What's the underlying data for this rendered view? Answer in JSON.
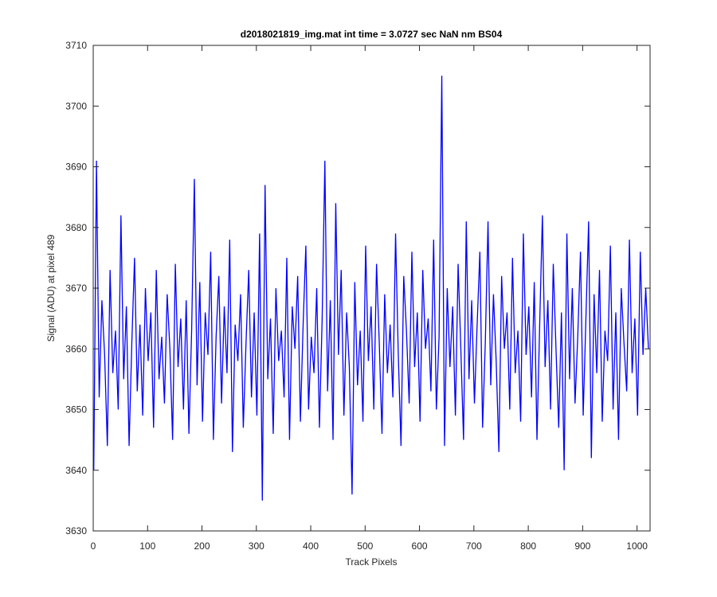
{
  "chart_data": {
    "type": "line",
    "title": "d2018021819_img.mat int time = 3.0727 sec  NaN nm BS04",
    "x_label": "Track Pixels",
    "y_label": "Signal (ADU) at pixel 489",
    "xlim": [
      0,
      1024
    ],
    "ylim": [
      3630,
      3710
    ],
    "xticks": [
      0,
      100,
      200,
      300,
      400,
      500,
      600,
      700,
      800,
      900,
      1000
    ],
    "yticks": [
      3630,
      3640,
      3650,
      3660,
      3670,
      3680,
      3690,
      3700,
      3710
    ],
    "grid": false,
    "x": [
      1,
      6,
      11,
      16,
      21,
      26,
      31,
      36,
      41,
      46,
      51,
      56,
      61,
      66,
      71,
      76,
      81,
      86,
      91,
      96,
      101,
      106,
      111,
      116,
      121,
      126,
      131,
      136,
      141,
      146,
      151,
      156,
      161,
      166,
      171,
      176,
      181,
      186,
      191,
      196,
      201,
      206,
      211,
      216,
      221,
      226,
      231,
      236,
      241,
      246,
      251,
      256,
      261,
      266,
      271,
      276,
      281,
      286,
      291,
      296,
      301,
      306,
      311,
      316,
      321,
      326,
      331,
      336,
      341,
      346,
      351,
      356,
      361,
      366,
      371,
      376,
      381,
      386,
      391,
      396,
      401,
      406,
      411,
      416,
      421,
      426,
      431,
      436,
      441,
      446,
      451,
      456,
      461,
      466,
      471,
      476,
      481,
      486,
      491,
      496,
      501,
      506,
      511,
      516,
      521,
      526,
      531,
      536,
      541,
      546,
      551,
      556,
      561,
      566,
      571,
      576,
      581,
      586,
      591,
      596,
      601,
      606,
      611,
      616,
      621,
      626,
      631,
      636,
      641,
      646,
      651,
      656,
      661,
      666,
      671,
      676,
      681,
      686,
      691,
      696,
      701,
      706,
      711,
      716,
      721,
      726,
      731,
      736,
      741,
      746,
      751,
      756,
      761,
      766,
      771,
      776,
      781,
      786,
      791,
      796,
      801,
      806,
      811,
      816,
      821,
      826,
      831,
      836,
      841,
      846,
      851,
      856,
      861,
      866,
      871,
      876,
      881,
      886,
      891,
      896,
      901,
      906,
      911,
      916,
      921,
      926,
      931,
      936,
      941,
      946,
      951,
      956,
      961,
      966,
      971,
      976,
      981,
      986,
      991,
      996,
      1001,
      1006,
      1011,
      1016,
      1021
    ],
    "series": [
      {
        "color": "#0000ff",
        "values": [
          3640,
          3691,
          3652,
          3668,
          3659,
          3644,
          3673,
          3656,
          3663,
          3650,
          3682,
          3655,
          3667,
          3644,
          3661,
          3675,
          3653,
          3664,
          3649,
          3670,
          3658,
          3666,
          3647,
          3673,
          3655,
          3662,
          3651,
          3669,
          3660,
          3645,
          3674,
          3657,
          3665,
          3650,
          3668,
          3646,
          3663,
          3688,
          3654,
          3671,
          3648,
          3666,
          3659,
          3676,
          3645,
          3662,
          3672,
          3651,
          3667,
          3656,
          3678,
          3643,
          3664,
          3658,
          3669,
          3647,
          3661,
          3673,
          3652,
          3666,
          3649,
          3679,
          3635,
          3687,
          3655,
          3665,
          3646,
          3670,
          3658,
          3663,
          3652,
          3675,
          3645,
          3667,
          3660,
          3672,
          3648,
          3664,
          3677,
          3650,
          3662,
          3656,
          3670,
          3647,
          3665,
          3691,
          3653,
          3668,
          3645,
          3684,
          3659,
          3673,
          3649,
          3666,
          3657,
          3636,
          3671,
          3654,
          3663,
          3648,
          3677,
          3658,
          3667,
          3650,
          3674,
          3661,
          3646,
          3669,
          3656,
          3664,
          3652,
          3679,
          3659,
          3644,
          3672,
          3663,
          3651,
          3676,
          3657,
          3666,
          3648,
          3673,
          3660,
          3665,
          3653,
          3678,
          3650,
          3662,
          3705,
          3644,
          3670,
          3657,
          3667,
          3649,
          3674,
          3660,
          3645,
          3681,
          3655,
          3668,
          3651,
          3664,
          3676,
          3647,
          3661,
          3681,
          3654,
          3669,
          3658,
          3643,
          3672,
          3660,
          3666,
          3650,
          3675,
          3656,
          3663,
          3648,
          3679,
          3659,
          3667,
          3652,
          3671,
          3645,
          3664,
          3682,
          3657,
          3668,
          3650,
          3674,
          3660,
          3647,
          3666,
          3640,
          3679,
          3655,
          3670,
          3651,
          3662,
          3676,
          3649,
          3665,
          3681,
          3642,
          3669,
          3656,
          3673,
          3648,
          3663,
          3658,
          3677,
          3650,
          3666,
          3645,
          3670,
          3661,
          3653,
          3678,
          3656,
          3665,
          3649,
          3676,
          3659,
          3670,
          3660
        ]
      }
    ]
  }
}
